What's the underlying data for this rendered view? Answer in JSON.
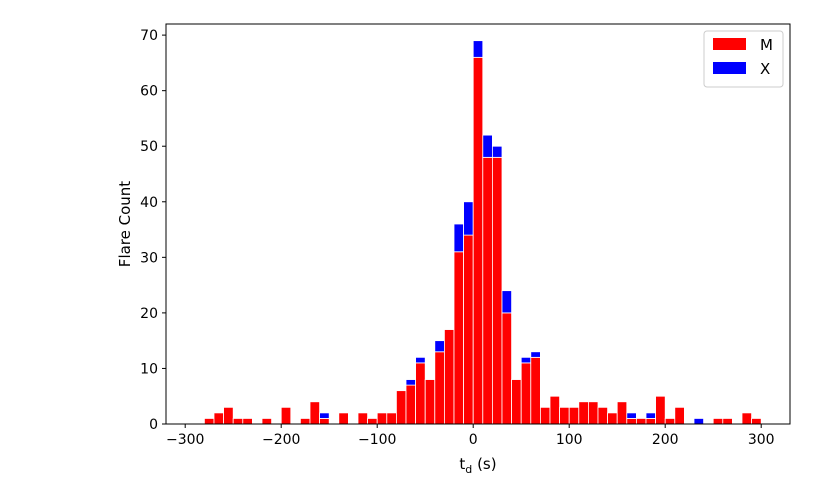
{
  "chart_data": {
    "type": "bar",
    "stacked": true,
    "xlabel": "t",
    "xlabel_subscript": "d",
    "xlabel_unit": "(s)",
    "ylabel": "Flare Count",
    "xlim": [
      -320,
      330
    ],
    "ylim": [
      0,
      72
    ],
    "xticks": [
      -300,
      -200,
      -100,
      0,
      100,
      200,
      300
    ],
    "xtick_labels": [
      "−300",
      "−200",
      "−100",
      "0",
      "100",
      "200",
      "300"
    ],
    "yticks": [
      0,
      10,
      20,
      30,
      40,
      50,
      60,
      70
    ],
    "ytick_labels": [
      "0",
      "10",
      "20",
      "30",
      "40",
      "50",
      "60",
      "70"
    ],
    "grid": false,
    "legend_position": "top-right",
    "bin_width": 10,
    "x": [
      -275,
      -265,
      -255,
      -245,
      -235,
      -215,
      -195,
      -175,
      -165,
      -155,
      -135,
      -115,
      -105,
      -95,
      -85,
      -75,
      -65,
      -55,
      -45,
      -35,
      -25,
      -15,
      -5,
      5,
      15,
      25,
      35,
      45,
      55,
      65,
      75,
      85,
      95,
      105,
      115,
      125,
      135,
      145,
      155,
      165,
      175,
      185,
      195,
      205,
      215,
      235,
      255,
      265,
      285,
      295
    ],
    "series": [
      {
        "name": "M",
        "color": "#ff0000",
        "values": [
          1,
          2,
          3,
          1,
          1,
          1,
          3,
          1,
          4,
          1,
          2,
          2,
          1,
          2,
          2,
          6,
          7,
          11,
          8,
          13,
          17,
          31,
          34,
          66,
          48,
          48,
          20,
          8,
          11,
          12,
          3,
          5,
          3,
          3,
          4,
          4,
          3,
          2,
          4,
          1,
          1,
          1,
          5,
          1,
          3,
          0,
          1,
          1,
          2,
          1
        ]
      },
      {
        "name": "X",
        "color": "#0000ff",
        "values": [
          0,
          0,
          0,
          0,
          0,
          0,
          0,
          0,
          0,
          1,
          0,
          0,
          0,
          0,
          0,
          0,
          1,
          1,
          0,
          2,
          0,
          5,
          6,
          3,
          4,
          2,
          4,
          0,
          1,
          1,
          0,
          0,
          0,
          0,
          0,
          0,
          0,
          0,
          0,
          1,
          0,
          1,
          0,
          0,
          0,
          1,
          0,
          0,
          0,
          0
        ]
      }
    ]
  }
}
